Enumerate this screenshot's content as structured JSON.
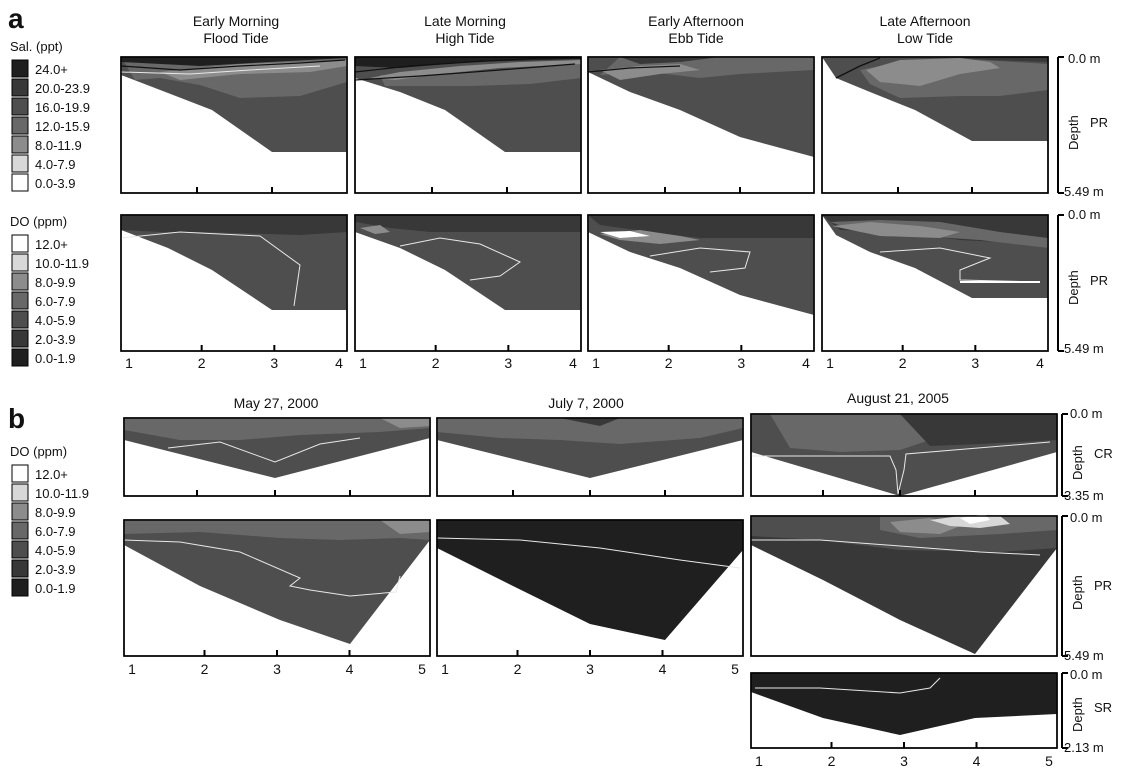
{
  "figure": {
    "label_a": "a",
    "label_b": "b",
    "colors": {
      "black": "#1f1f1f",
      "dark": "#383838",
      "mid_dark": "#4e4e4e",
      "mid": "#686868",
      "mid_light": "#8c8c8c",
      "light": "#d8d8d8",
      "white": "#ffffff",
      "isoline": "#e8e8e8"
    }
  },
  "legends": {
    "salinity": {
      "title": "Sal. (ppt)",
      "items": [
        {
          "label": "24.0+",
          "color": "#1f1f1f"
        },
        {
          "label": "20.0-23.9",
          "color": "#383838"
        },
        {
          "label": "16.0-19.9",
          "color": "#4e4e4e"
        },
        {
          "label": "12.0-15.9",
          "color": "#686868"
        },
        {
          "label": "8.0-11.9",
          "color": "#8c8c8c"
        },
        {
          "label": "4.0-7.9",
          "color": "#d8d8d8"
        },
        {
          "label": "0.0-3.9",
          "color": "#ffffff"
        }
      ]
    },
    "do_a": {
      "title": "DO (ppm)",
      "items": [
        {
          "label": "12.0+",
          "color": "#ffffff"
        },
        {
          "label": "10.0-11.9",
          "color": "#d8d8d8"
        },
        {
          "label": "8.0-9.9",
          "color": "#8c8c8c"
        },
        {
          "label": "6.0-7.9",
          "color": "#686868"
        },
        {
          "label": "4.0-5.9",
          "color": "#4e4e4e"
        },
        {
          "label": "2.0-3.9",
          "color": "#383838"
        },
        {
          "label": "0.0-1.9",
          "color": "#1f1f1f"
        }
      ]
    },
    "do_b": {
      "title": "DO (ppm)",
      "items": [
        {
          "label": "12.0+",
          "color": "#ffffff"
        },
        {
          "label": "10.0-11.9",
          "color": "#d8d8d8"
        },
        {
          "label": "8.0-9.9",
          "color": "#8c8c8c"
        },
        {
          "label": "6.0-7.9",
          "color": "#686868"
        },
        {
          "label": "4.0-5.9",
          "color": "#4e4e4e"
        },
        {
          "label": "2.0-3.9",
          "color": "#383838"
        },
        {
          "label": "0.0-1.9",
          "color": "#1f1f1f"
        }
      ]
    }
  },
  "chart_data": [
    {
      "type": "heatmap",
      "panel": "a",
      "columns": [
        {
          "title_line1": "Early Morning",
          "title_line2": "Flood Tide"
        },
        {
          "title_line1": "Late Morning",
          "title_line2": "High Tide"
        },
        {
          "title_line1": "Early Afternoon",
          "title_line2": "Ebb Tide"
        },
        {
          "title_line1": "Late Afternoon",
          "title_line2": "Low Tide"
        }
      ],
      "rows": [
        {
          "variable": "Sal. (ppt)",
          "site": "PR",
          "depth_axis": {
            "label": "Depth",
            "top": "0.0 m",
            "bottom": "5.49 m"
          }
        },
        {
          "variable": "DO (ppm)",
          "site": "PR",
          "depth_axis": {
            "label": "Depth",
            "top": "0.0 m",
            "bottom": "5.49 m"
          }
        }
      ],
      "x_ticks": [
        "1",
        "2",
        "3",
        "4"
      ]
    },
    {
      "type": "heatmap",
      "panel": "b",
      "variable": "DO (ppm)",
      "columns": [
        {
          "title": "May 27, 2000"
        },
        {
          "title": "July 7, 2000"
        },
        {
          "title": "August 21, 2005"
        }
      ],
      "rows": [
        {
          "site": "CR",
          "depth_axis": {
            "label": "Depth",
            "top": "0.0 m",
            "bottom": "3.35 m"
          }
        },
        {
          "site": "PR",
          "depth_axis": {
            "label": "Depth",
            "top": "0.0 m",
            "bottom": "5.49 m"
          }
        },
        {
          "site": "SR",
          "depth_axis": {
            "label": "Depth",
            "top": "0.0 m",
            "bottom": "2.13 m"
          }
        }
      ],
      "x_ticks": [
        "1",
        "2",
        "3",
        "4",
        "5"
      ]
    }
  ]
}
